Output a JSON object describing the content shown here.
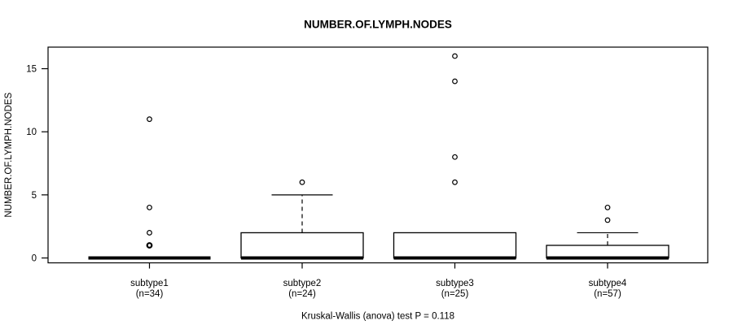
{
  "chart_data": {
    "type": "boxplot",
    "title": "NUMBER.OF.LYMPH.NODES",
    "ylabel": "NUMBER.OF.LYMPH.NODES",
    "xlabel": "",
    "yticks": [
      0,
      5,
      10,
      15
    ],
    "ylim": [
      -0.64,
      16.64
    ],
    "grid": false,
    "legend": "none",
    "annotation": "Kruskal-Wallis (anova) test P = 0.118",
    "groups": [
      {
        "label": "subtype1",
        "sublabel": "(n=34)",
        "median": 0,
        "q1": 0,
        "q3": 0,
        "whisker_low": 0,
        "whisker_high": 0,
        "outliers": [
          1,
          1,
          2,
          4,
          11
        ]
      },
      {
        "label": "subtype2",
        "sublabel": "(n=24)",
        "median": 0,
        "q1": 0,
        "q3": 2,
        "whisker_low": 0,
        "whisker_high": 5,
        "outliers": [
          6
        ]
      },
      {
        "label": "subtype3",
        "sublabel": "(n=25)",
        "median": 0,
        "q1": 0,
        "q3": 2,
        "whisker_low": 0,
        "whisker_high": 2,
        "outliers": [
          6,
          8,
          14,
          16
        ]
      },
      {
        "label": "subtype4",
        "sublabel": "(n=57)",
        "median": 0,
        "q1": 0,
        "q3": 1,
        "whisker_low": 0,
        "whisker_high": 2,
        "outliers": [
          3,
          4
        ]
      }
    ],
    "colors": {
      "line": "#000000",
      "box_fill": "#ffffff",
      "background": "#ffffff"
    }
  }
}
